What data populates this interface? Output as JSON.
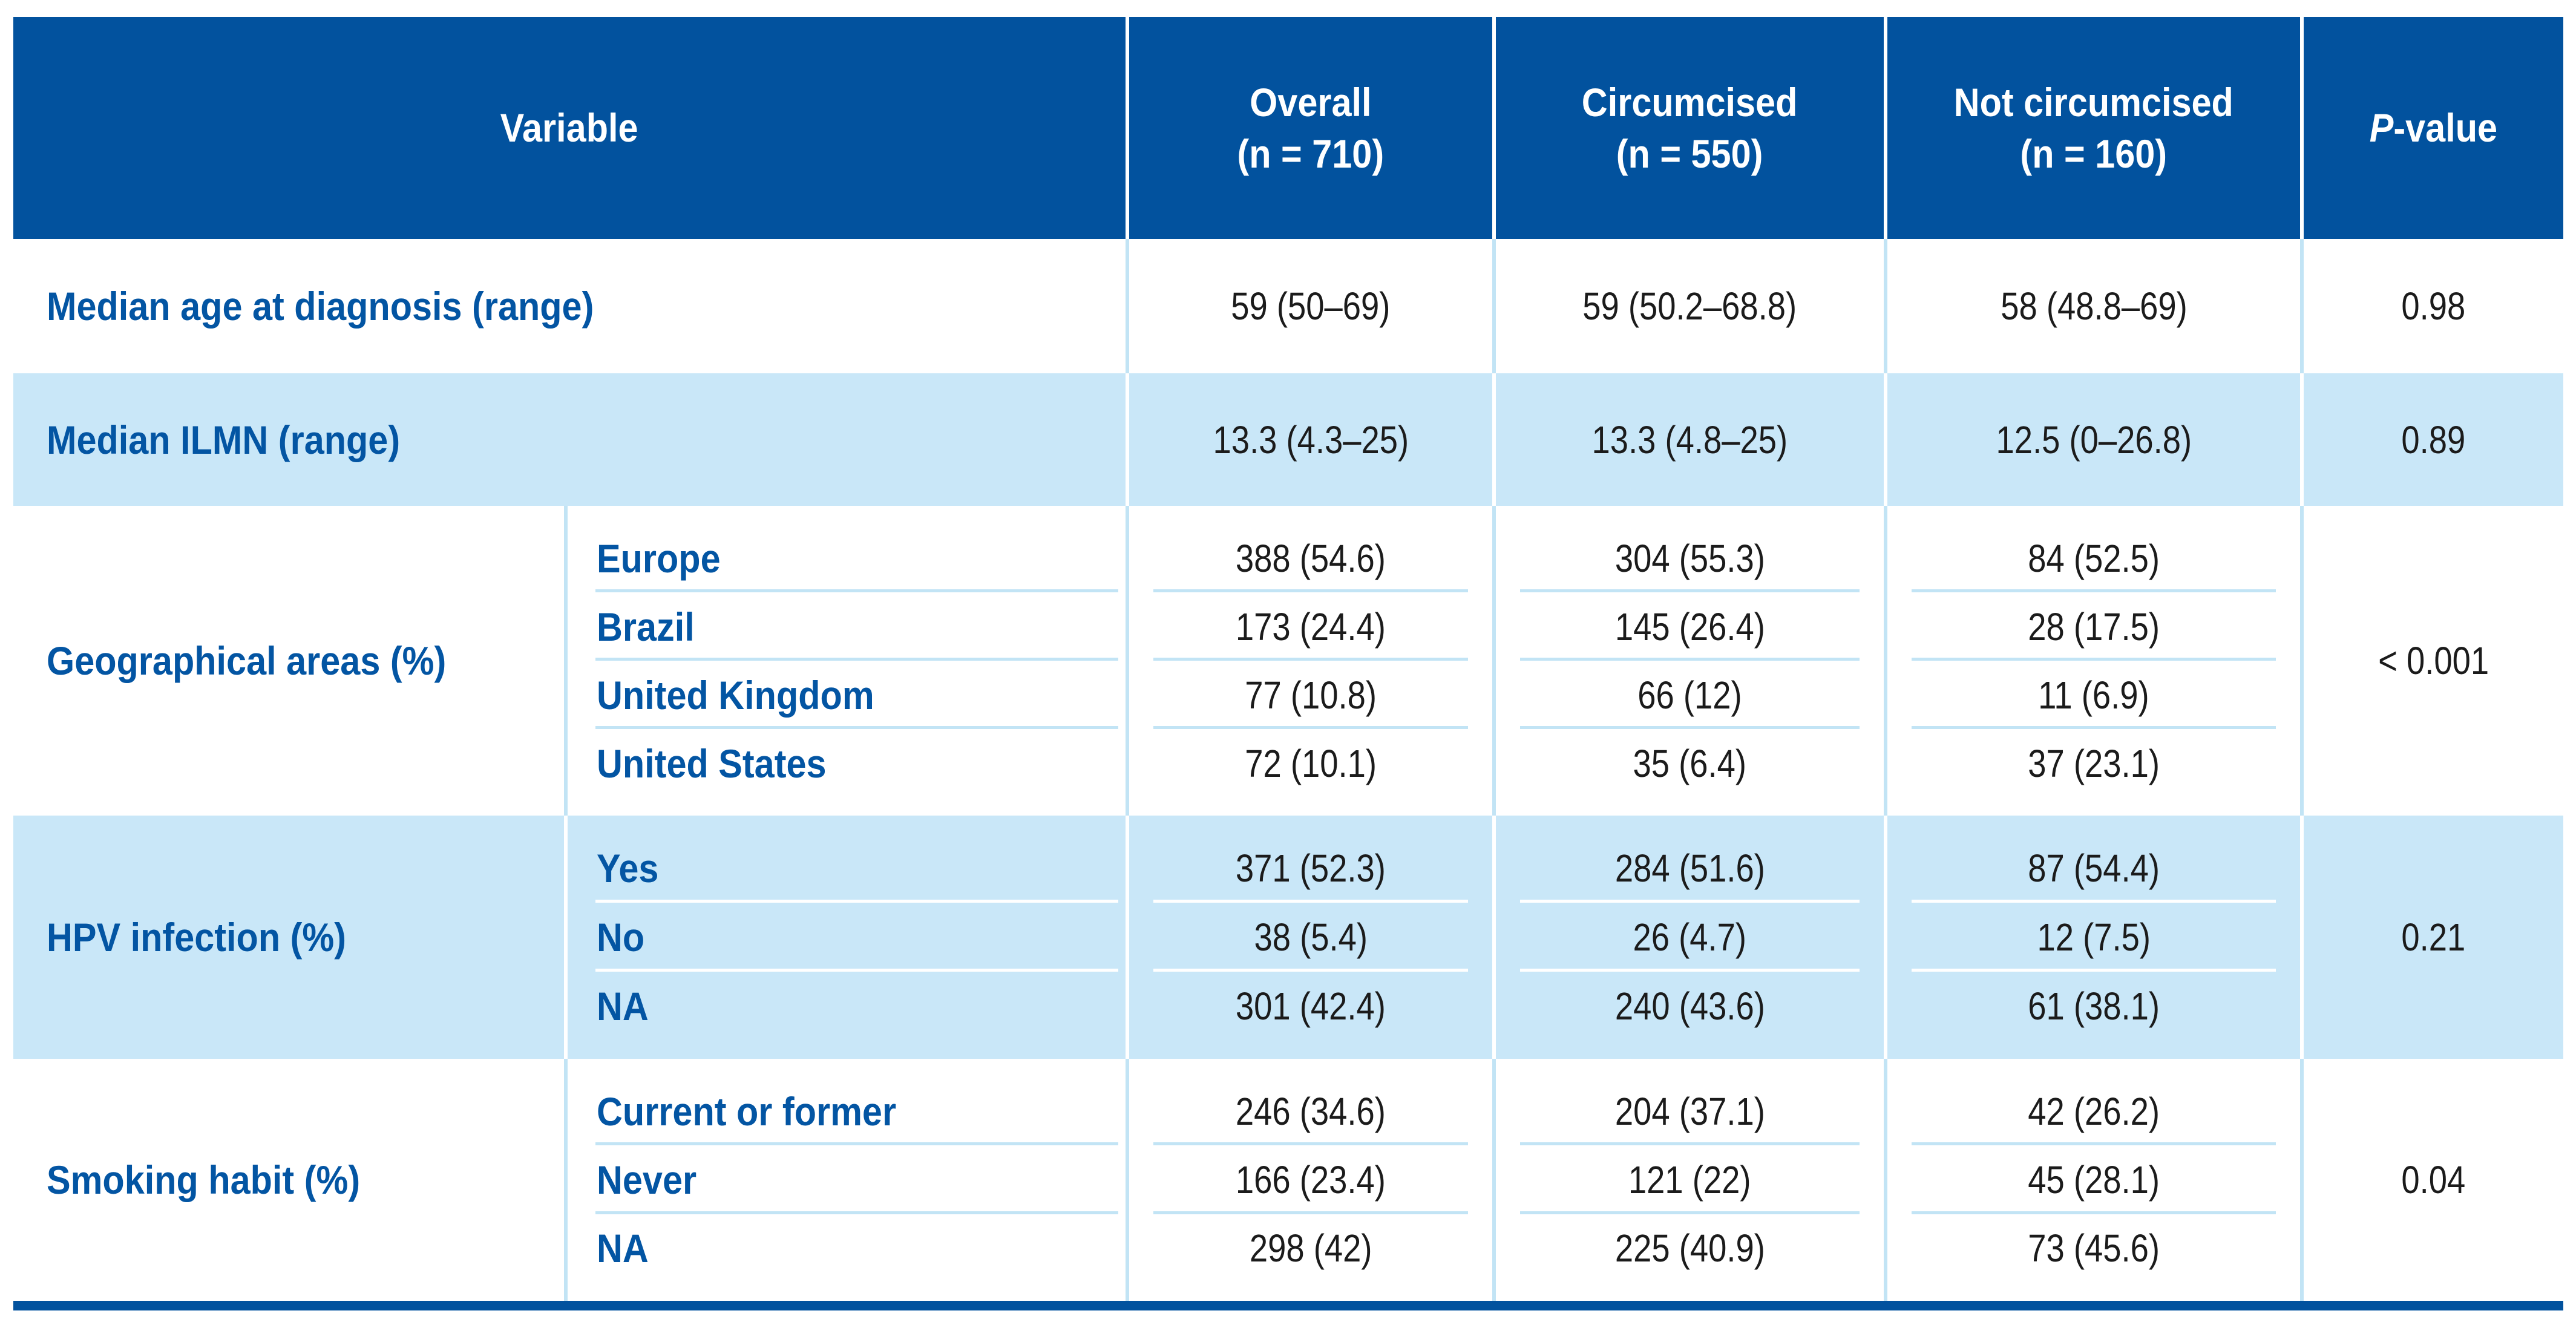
{
  "colors": {
    "accent_blue": "#02529e",
    "row_light_blue": "#c9e7f8",
    "separator_light_blue": "#c2e4f5",
    "number_text": "#1b1b1b",
    "label_text": "#0355a3",
    "white": "#ffffff"
  },
  "header": {
    "variable": "Variable",
    "overall": {
      "l1": "Overall",
      "l2": "(n = 710)"
    },
    "circumcised": {
      "l1": "Circumcised",
      "l2": "(n = 550)"
    },
    "not_circumcised": {
      "l1": "Not circumcised",
      "l2": "(n = 160)"
    },
    "pvalue": {
      "italic": "P",
      "rest": "-value"
    }
  },
  "rows": [
    {
      "label": "Median age at diagnosis (range)",
      "overall": "59 (50–69)",
      "circumcised": "59 (50.2–68.8)",
      "not_circumcised": "58 (48.8–69)",
      "p": "0.98"
    },
    {
      "label": "Median ILMN (range)",
      "overall": "13.3 (4.3–25)",
      "circumcised": "13.3 (4.8–25)",
      "not_circumcised": "12.5 (0–26.8)",
      "p": "0.89"
    },
    {
      "label": "Geographical areas (%)",
      "sub": [
        "Europe",
        "Brazil",
        "United Kingdom",
        "United States"
      ],
      "overall": [
        "388 (54.6)",
        "173 (24.4)",
        "77 (10.8)",
        "72 (10.1)"
      ],
      "circumcised": [
        "304 (55.3)",
        "145 (26.4)",
        "66 (12)",
        "35 (6.4)"
      ],
      "not_circumcised": [
        "84 (52.5)",
        "28 (17.5)",
        "11 (6.9)",
        "37 (23.1)"
      ],
      "p": "< 0.001"
    },
    {
      "label": "HPV infection (%)",
      "sub": [
        "Yes",
        "No",
        "NA"
      ],
      "overall": [
        "371 (52.3)",
        "38 (5.4)",
        "301 (42.4)"
      ],
      "circumcised": [
        "284 (51.6)",
        "26 (4.7)",
        "240 (43.6)"
      ],
      "not_circumcised": [
        "87 (54.4)",
        "12 (7.5)",
        "61 (38.1)"
      ],
      "p": "0.21"
    },
    {
      "label": "Smoking habit (%)",
      "sub": [
        "Current or former",
        "Never",
        "NA"
      ],
      "overall": [
        "246 (34.6)",
        "166 (23.4)",
        "298 (42)"
      ],
      "circumcised": [
        "204 (37.1)",
        "121 (22)",
        "225 (40.9)"
      ],
      "not_circumcised": [
        "42 (26.2)",
        "45 (28.1)",
        "73 (45.6)"
      ],
      "p": "0.04"
    }
  ]
}
